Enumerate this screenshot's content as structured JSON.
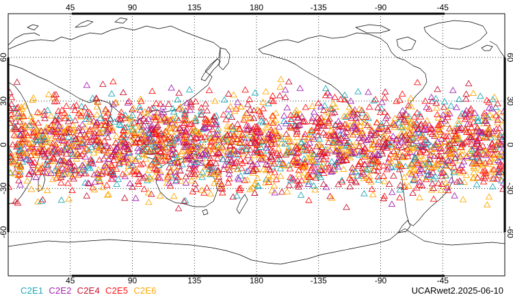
{
  "figure": {
    "product_label": "UCARwet2.2025-06-10",
    "projection": "equirectangular, centered on 180",
    "graticule": "dotted",
    "land_fill": "none",
    "coastline_color": "#000000"
  },
  "axes": {
    "lon_ticks": [
      "45",
      "90",
      "135",
      "180",
      "-135",
      "-90",
      "-45"
    ],
    "lon_tick_values": [
      45,
      90,
      135,
      180,
      225,
      270,
      315
    ],
    "lat_ticks_left": [
      "60",
      "30",
      "0",
      "-30",
      "-60"
    ],
    "lat_ticks_right": [
      "60",
      "30",
      "0",
      "-30",
      "-60"
    ],
    "lat_tick_values": [
      60,
      30,
      0,
      -30,
      -60
    ],
    "lon_range": [
      0,
      360
    ],
    "lat_range": [
      -90,
      90
    ]
  },
  "legend": {
    "items": [
      {
        "label": "C2E1",
        "color": "#18a8b8"
      },
      {
        "label": "C2E2",
        "color": "#a020b0"
      },
      {
        "label": "C2E4",
        "color": "#c8102e"
      },
      {
        "label": "C2E5",
        "color": "#ff1010"
      },
      {
        "label": "C2E6",
        "color": "#ffa800"
      }
    ]
  },
  "chart_data": {
    "type": "scatter",
    "marker": "open triangle",
    "series": [
      {
        "name": "C2E1",
        "color": "#18a8b8",
        "share": 0.12
      },
      {
        "name": "C2E2",
        "color": "#a020b0",
        "share": 0.16
      },
      {
        "name": "C2E4",
        "color": "#c8102e",
        "share": 0.22
      },
      {
        "name": "C2E5",
        "color": "#ff1010",
        "share": 0.22
      },
      {
        "name": "C2E6",
        "color": "#ffa800",
        "share": 0.28
      }
    ],
    "lat_extent": [
      -45,
      45
    ],
    "lon_extent": [
      0,
      360
    ]
  }
}
